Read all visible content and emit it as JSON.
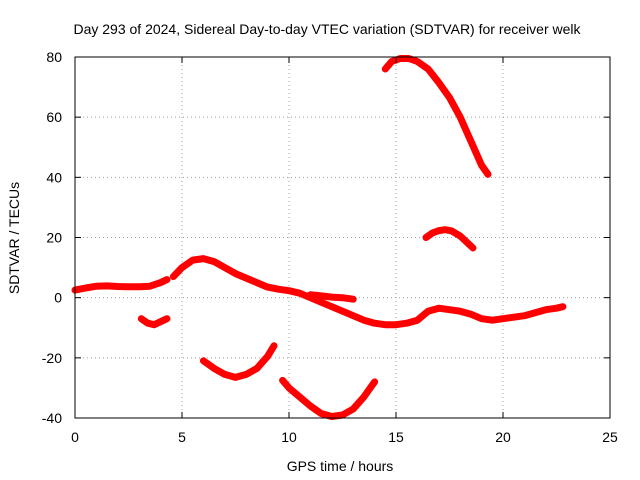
{
  "chart_data": {
    "type": "line",
    "title": "Day 293 of 2024, Sidereal Day-to-day VTEC variation (SDTVAR) for receiver welk",
    "xlabel": "GPS time / hours",
    "ylabel": "SDTVAR / TECUs",
    "xlim": [
      0,
      25
    ],
    "ylim": [
      -40,
      80
    ],
    "xticks": [
      "0",
      "5",
      "10",
      "15",
      "20",
      "25"
    ],
    "yticks": [
      "-40",
      "-20",
      "0",
      "20",
      "40",
      "60",
      "80"
    ],
    "grid": true,
    "legend": "none",
    "color": "#ff0000",
    "series": [
      {
        "name": "seg-main-1",
        "x": [
          0,
          0.5,
          1,
          1.5,
          2,
          2.5,
          3,
          3.5,
          4,
          4.3
        ],
        "y": [
          2.5,
          3.2,
          3.8,
          3.9,
          3.7,
          3.6,
          3.6,
          3.8,
          5,
          6
        ]
      },
      {
        "name": "seg-main-2",
        "x": [
          4.6,
          5,
          5.5,
          6,
          6.5,
          7,
          7.5,
          8,
          8.5,
          9,
          9.5,
          10,
          10.5,
          11,
          11.5,
          12,
          12.5,
          13,
          13.5,
          14,
          14.5,
          15,
          15.5,
          16,
          16.5,
          17,
          17.5,
          18,
          18.5,
          19,
          19.5,
          20,
          20.5,
          21,
          21.5,
          22,
          22.5,
          22.8
        ],
        "y": [
          7,
          10,
          12.5,
          13,
          12,
          10,
          8,
          6.5,
          5,
          3.5,
          2.8,
          2.3,
          1.5,
          0,
          -1.5,
          -3,
          -4.5,
          -6,
          -7.5,
          -8.5,
          -9,
          -9,
          -8.5,
          -7.5,
          -4.5,
          -3.5,
          -4,
          -4.5,
          -5.5,
          -7,
          -7.5,
          -7,
          -6.5,
          -6,
          -5,
          -4,
          -3.5,
          -3
        ]
      },
      {
        "name": "seg-mid",
        "x": [
          11,
          11.5,
          12,
          12.5,
          13
        ],
        "y": [
          1,
          0.6,
          0.2,
          0,
          -0.5
        ]
      },
      {
        "name": "seg-small-neg",
        "x": [
          3.1,
          3.4,
          3.7,
          4,
          4.3
        ],
        "y": [
          -7,
          -8.5,
          -9,
          -8,
          -7
        ]
      },
      {
        "name": "seg-neg-25",
        "x": [
          6,
          6.5,
          7,
          7.5,
          8,
          8.5,
          9,
          9.3
        ],
        "y": [
          -21,
          -23.5,
          -25.5,
          -26.5,
          -25.5,
          -23.5,
          -19.5,
          -16
        ]
      },
      {
        "name": "seg-neg-39",
        "x": [
          9.7,
          10,
          10.5,
          11,
          11.5,
          12,
          12.5,
          13,
          13.5,
          14
        ],
        "y": [
          -27.5,
          -30,
          -33,
          -36,
          -38.5,
          -39.5,
          -39,
          -37,
          -33,
          -28
        ]
      },
      {
        "name": "seg-high",
        "x": [
          14.5,
          14.8,
          15.2,
          15.6,
          16,
          16.5,
          17,
          17.5,
          18,
          18.5,
          19,
          19.3
        ],
        "y": [
          76,
          78.5,
          79.5,
          79.5,
          78.5,
          76,
          71.5,
          66.5,
          60,
          52,
          44,
          41
        ]
      },
      {
        "name": "seg-20",
        "x": [
          16.4,
          16.7,
          17,
          17.3,
          17.6,
          18,
          18.3,
          18.6
        ],
        "y": [
          20,
          21.5,
          22.3,
          22.6,
          22.2,
          20.5,
          18.5,
          16.5
        ]
      }
    ]
  }
}
